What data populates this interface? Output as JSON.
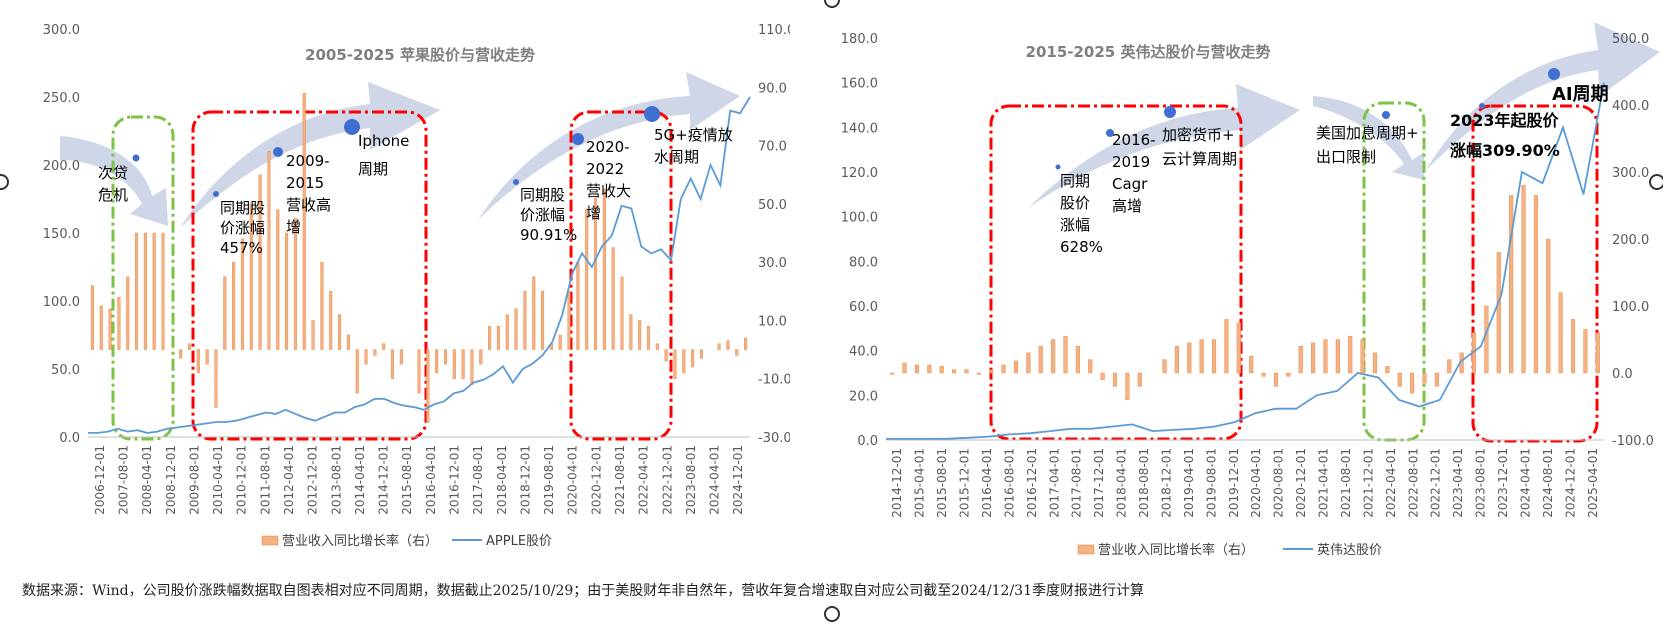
{
  "chart_data": [
    {
      "type": "bar+line",
      "title": "2005-2025   苹果股价与营收走势",
      "left_axis": {
        "ticks": [
          "300.0",
          "250.0",
          "200.0",
          "150.0",
          "100.0",
          "50.0",
          "0.0"
        ],
        "ylim": [
          0,
          300
        ]
      },
      "right_axis": {
        "ticks": [
          "110.0",
          "90.0",
          "70.0",
          "50.0",
          "30.0",
          "10.0",
          "-10.0",
          "-30.0"
        ],
        "ylim": [
          -30,
          110
        ]
      },
      "x_tick_labels": [
        "2006-12-01",
        "2007-08-01",
        "2008-04-01",
        "2008-12-01",
        "2009-08-01",
        "2010-04-01",
        "2010-12-01",
        "2011-08-01",
        "2012-04-01",
        "2012-12-01",
        "2013-08-01",
        "2014-04-01",
        "2014-12-01",
        "2015-08-01",
        "2016-04-01",
        "2016-12-01",
        "2017-08-01",
        "2018-04-01",
        "2018-12-01",
        "2019-08-01",
        "2020-04-01",
        "2020-12-01",
        "2021-08-01",
        "2022-04-01",
        "2022-12-01",
        "2023-08-01",
        "2024-04-01",
        "2024-12-01"
      ],
      "series": [
        {
          "name": "营业收入同比增长率（右）",
          "type": "bar",
          "axis": "right",
          "values": [
            22,
            15,
            14,
            18,
            25,
            40,
            40,
            40,
            40,
            0,
            -3,
            2,
            -8,
            -5,
            -20,
            25,
            30,
            38,
            50,
            60,
            68,
            48,
            40,
            45,
            88,
            10,
            30,
            20,
            12,
            5,
            -15,
            -5,
            -2,
            2,
            -10,
            -5,
            0,
            -15,
            -25,
            -8,
            -5,
            -10,
            -10,
            -12,
            -5,
            8,
            8,
            12,
            14,
            20,
            25,
            20,
            2,
            5,
            20,
            30,
            48,
            52,
            55,
            35,
            25,
            12,
            10,
            8,
            2,
            -4,
            -10,
            -8,
            -6,
            -3,
            0,
            2,
            3,
            -2,
            4
          ]
        },
        {
          "name": "APPLE股价",
          "type": "line",
          "axis": "left",
          "values": [
            3,
            3,
            4,
            6,
            4,
            5,
            3,
            4,
            6,
            7,
            8,
            9,
            10,
            11,
            11,
            12,
            14,
            16,
            18,
            17,
            20,
            17,
            14,
            12,
            15,
            18,
            18,
            22,
            24,
            28,
            28,
            25,
            23,
            22,
            20,
            24,
            26,
            32,
            34,
            40,
            42,
            46,
            52,
            40,
            50,
            54,
            60,
            70,
            90,
            120,
            135,
            125,
            140,
            148,
            170,
            168,
            140,
            135,
            138,
            130,
            175,
            190,
            175,
            200,
            185,
            240,
            238,
            250
          ]
        }
      ],
      "annotations": [
        "次贷\n危机",
        "同期股\n价涨幅\n457%",
        "2009-\n2015\n营收高\n增",
        "Iphone\n周期",
        "同期股\n价涨幅\n90.91%",
        "2020-\n2022\n营收大\n增",
        "5G+疫情放\n水周期"
      ]
    },
    {
      "type": "bar+line",
      "title": "2015-2025   英伟达股价与营收走势",
      "left_axis": {
        "ticks": [
          "180.0",
          "160.0",
          "140.0",
          "120.0",
          "100.0",
          "80.0",
          "60.0",
          "40.0",
          "20.0",
          "0.0"
        ],
        "ylim": [
          0,
          180
        ]
      },
      "right_axis": {
        "ticks": [
          "500.0",
          "400.0",
          "300.0",
          "200.0",
          "100.0",
          "0.0",
          "-100.0"
        ],
        "ylim": [
          -100,
          500
        ]
      },
      "x_tick_labels": [
        "2014-12-01",
        "2015-04-01",
        "2015-08-01",
        "2015-12-01",
        "2016-04-01",
        "2016-08-01",
        "2016-12-01",
        "2017-04-01",
        "2017-08-01",
        "2017-12-01",
        "2018-04-01",
        "2018-08-01",
        "2018-12-01",
        "2019-04-01",
        "2019-08-01",
        "2019-12-01",
        "2020-04-01",
        "2020-08-01",
        "2020-12-01",
        "2021-04-01",
        "2021-08-01",
        "2021-12-01",
        "2022-04-01",
        "2022-08-01",
        "2022-12-01",
        "2023-04-01",
        "2023-08-01",
        "2023-12-01",
        "2024-04-01",
        "2024-08-01",
        "2024-12-01",
        "2025-04-01"
      ],
      "series": [
        {
          "name": "营业收入同比增长率（右）",
          "type": "bar",
          "axis": "right",
          "values": [
            -2,
            15,
            12,
            12,
            10,
            5,
            5,
            -2,
            5,
            12,
            18,
            30,
            40,
            50,
            55,
            40,
            20,
            -10,
            -20,
            -40,
            -20,
            0,
            20,
            40,
            45,
            50,
            50,
            80,
            75,
            25,
            -5,
            -20,
            -5,
            40,
            45,
            50,
            50,
            55,
            50,
            30,
            10,
            -20,
            -30,
            -15,
            -20,
            20,
            30,
            60,
            100,
            180,
            265,
            280,
            265,
            200,
            120,
            80,
            65,
            60
          ]
        },
        {
          "name": "英伟达股价",
          "type": "line",
          "axis": "left",
          "values": [
            0.5,
            0.5,
            0.5,
            0.6,
            1,
            1.5,
            2.5,
            3,
            4,
            5,
            5,
            6,
            7,
            4,
            4.5,
            5,
            6,
            8,
            12,
            14,
            14,
            20,
            22,
            30,
            28,
            18,
            15,
            18,
            35,
            42,
            65,
            120,
            115,
            140,
            110,
            160
          ]
        }
      ],
      "annotations": [
        "同期\n股价\n涨幅\n628%",
        "2016-\n2019\nCagr\n高增",
        "加密货币+\n云计算周期",
        "美国加息周期+\n出口限制",
        "2023年起股价\n涨幅309.90%",
        "AI周期"
      ]
    }
  ],
  "source_note": "数据来源：Wind，公司股价涨跌幅数据取自图表相对应不同周期，数据截止2025/10/29；由于美股财年非自然年，营收年复合增速取自对应公司截至2024/12/31季度财报进行计算",
  "colors": {
    "bar": "#F4B183",
    "bar_edge": "#E8803A",
    "line": "#5B9BD5",
    "arrow": "#C9D2E6",
    "dot": "#3F6FD0",
    "red_box": "#FF0000",
    "green_box": "#7CC243",
    "axis_text": "#595959",
    "title_text": "#7F7F7F"
  }
}
